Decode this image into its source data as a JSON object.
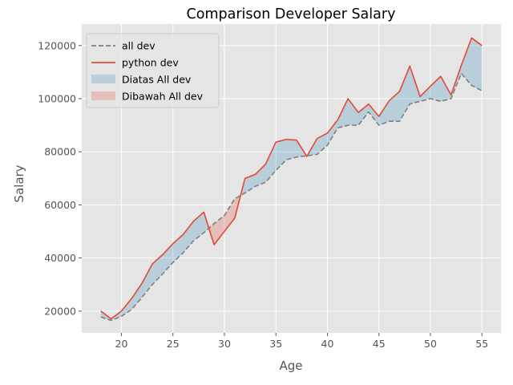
{
  "chart_data": {
    "type": "line",
    "title": "Comparison Developer Salary",
    "xlabel": "Age",
    "ylabel": "Salary",
    "xlim": [
      16.15,
      56.85
    ],
    "ylim": [
      11800,
      128100
    ],
    "xticks": [
      20,
      25,
      30,
      35,
      40,
      45,
      50,
      55
    ],
    "yticks": [
      20000,
      40000,
      60000,
      80000,
      100000,
      120000
    ],
    "grid": true,
    "legend_position": "upper-left",
    "x": [
      18,
      19,
      20,
      21,
      22,
      23,
      24,
      25,
      26,
      27,
      28,
      29,
      30,
      31,
      32,
      33,
      34,
      35,
      36,
      37,
      38,
      39,
      40,
      41,
      42,
      43,
      44,
      45,
      46,
      47,
      48,
      49,
      50,
      51,
      52,
      53,
      54,
      55
    ],
    "series": [
      {
        "name": "all dev",
        "style": "dashed",
        "color": "#7f7f7f",
        "values": [
          17784,
          16500,
          18012,
          20628,
          25206,
          30000,
          34000,
          38300,
          42000,
          46500,
          49500,
          53000,
          56000,
          62300,
          64500,
          67000,
          68500,
          73000,
          77000,
          78000,
          78500,
          79000,
          82500,
          89000,
          90000,
          90000,
          95000,
          90000,
          91500,
          91500,
          98000,
          99000,
          100000,
          99000,
          100000,
          109500,
          105000,
          103000
        ]
      },
      {
        "name": "python dev",
        "style": "solid",
        "color": "#e24a33",
        "values": [
          20046,
          17100,
          20000,
          24744,
          30500,
          37732,
          41247,
          45372,
          48876,
          53850,
          57287,
          45000,
          50000,
          55000,
          70000,
          71496,
          75370,
          83640,
          84666,
          84392,
          78254,
          85000,
          87038,
          91991,
          100000,
          94796,
          97962,
          93302,
          99240,
          102736,
          112285,
          100771,
          104708,
          108423,
          101407,
          112542,
          122870,
          120000
        ]
      }
    ],
    "fills": [
      {
        "name": "Diatas All dev",
        "color": "#348abd",
        "alpha": 0.25
      },
      {
        "name": "Dibawah All dev",
        "color": "#e24a33",
        "alpha": 0.25
      }
    ],
    "colors": {
      "axes_bg": "#e5e5e5",
      "grid": "#ffffff",
      "legend_bg": "#e5e5e5"
    }
  }
}
